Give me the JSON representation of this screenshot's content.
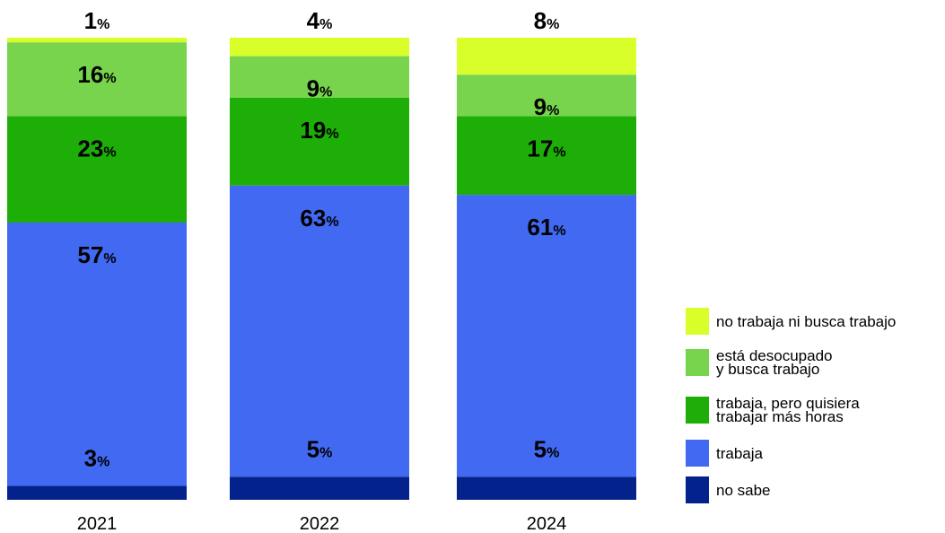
{
  "chart_data": {
    "type": "bar",
    "stacked": true,
    "percent_suffix": "%",
    "categories": [
      "2021",
      "2022",
      "2024"
    ],
    "series": [
      {
        "name": "no sabe",
        "color": "#04228C",
        "values": [
          3,
          5,
          5
        ]
      },
      {
        "name": "trabaja",
        "color": "#4169F2",
        "values": [
          57,
          63,
          61
        ]
      },
      {
        "name": "trabaja, pero quisiera trabajar más horas",
        "color": "#1DAE07",
        "values": [
          23,
          19,
          17
        ]
      },
      {
        "name": "está desocupado y busca trabajo",
        "color": "#78D44D",
        "values": [
          16,
          9,
          9
        ]
      },
      {
        "name": "no trabaja ni busca trabajo",
        "color": "#D8FF2A",
        "values": [
          1,
          4,
          8
        ]
      }
    ],
    "legend_position": "right",
    "grid": false,
    "ylim": [
      0,
      100
    ]
  },
  "legend": [
    {
      "label": "no trabaja ni busca trabajo",
      "color": "#D8FF2A"
    },
    {
      "label": "está desocupado\ny busca trabajo",
      "color": "#78D44D"
    },
    {
      "label": "trabaja, pero quisiera\ntrabajar más horas",
      "color": "#1DAE07"
    },
    {
      "label": "trabaja",
      "color": "#4169F2"
    },
    {
      "label": "no sabe",
      "color": "#04228C"
    }
  ]
}
